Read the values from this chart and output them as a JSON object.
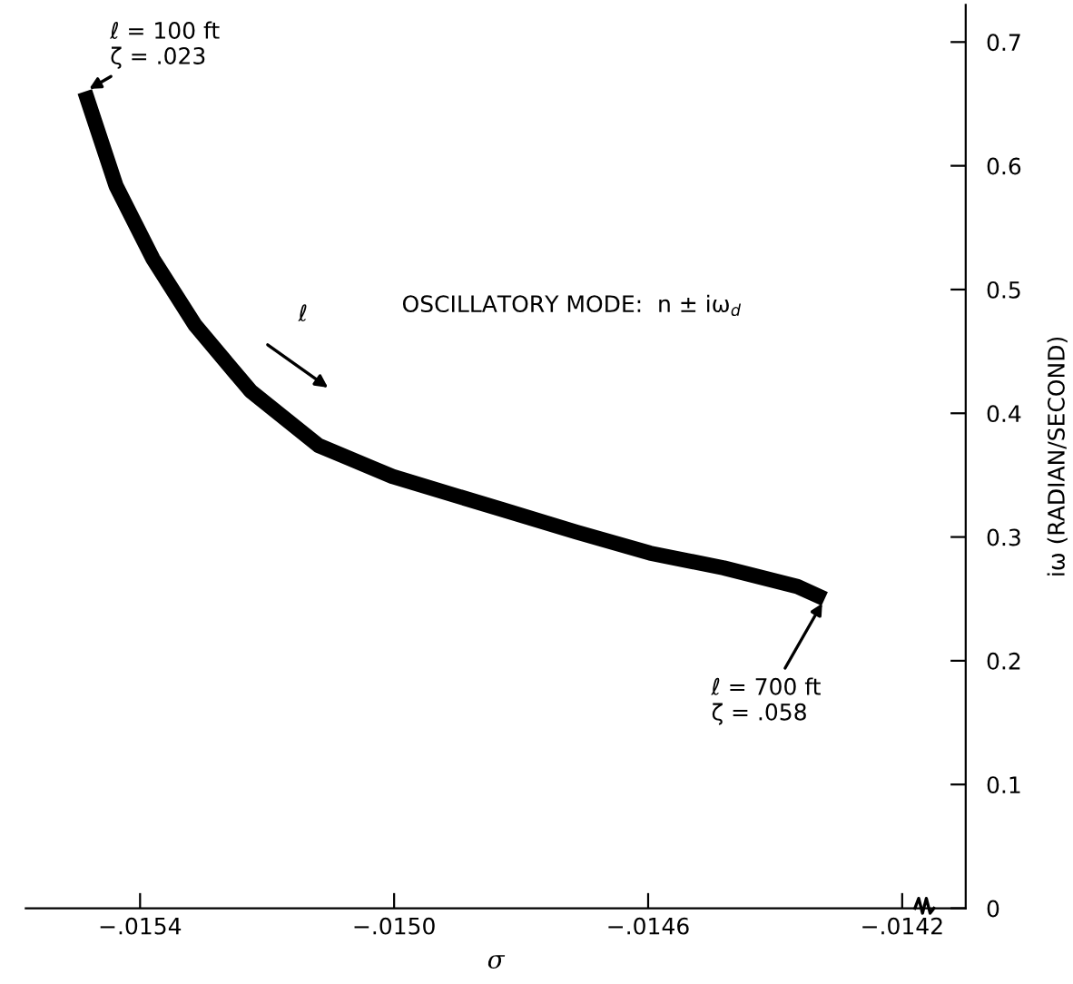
{
  "chart_data": {
    "type": "line",
    "xlabel": "σ",
    "ylabel": "iω (RADIAN/SECOND)",
    "x": [
      -0.015487,
      -0.015438,
      -0.01538,
      -0.015313,
      -0.015226,
      -0.015119,
      -0.015003,
      -0.014829,
      -0.014713,
      -0.014597,
      -0.014481,
      -0.014365,
      -0.014322
    ],
    "series": [
      {
        "color": "#000000",
        "values": [
          0.66,
          0.584,
          0.525,
          0.471,
          0.418,
          0.374,
          0.349,
          0.322,
          0.304,
          0.287,
          0.275,
          0.26,
          0.25
        ]
      }
    ],
    "xlim": [
      -0.01558,
      -0.0141
    ],
    "ylim": [
      0,
      0.73
    ],
    "xticks": [
      {
        "value": -0.0154,
        "label": "−.0154"
      },
      {
        "value": -0.015,
        "label": "−.0150"
      },
      {
        "value": -0.0146,
        "label": "−.0146"
      },
      {
        "value": -0.0142,
        "label": "−.0142"
      }
    ],
    "yticks": [
      0,
      0.1,
      0.2,
      0.3,
      0.4,
      0.5,
      0.6,
      0.7
    ],
    "grid": false,
    "marker": "none",
    "line_style": "solid",
    "annotations": [
      {
        "text": "ℓ = 100 ft\nζ = .023",
        "x": -0.015487,
        "y": 0.66
      },
      {
        "text": "ℓ = 700 ft\nζ = .058",
        "x": -0.014322,
        "y": 0.25
      },
      "ℓ",
      "OSCILLATORY MODE:  n ± iω$_{d}$"
    ]
  }
}
